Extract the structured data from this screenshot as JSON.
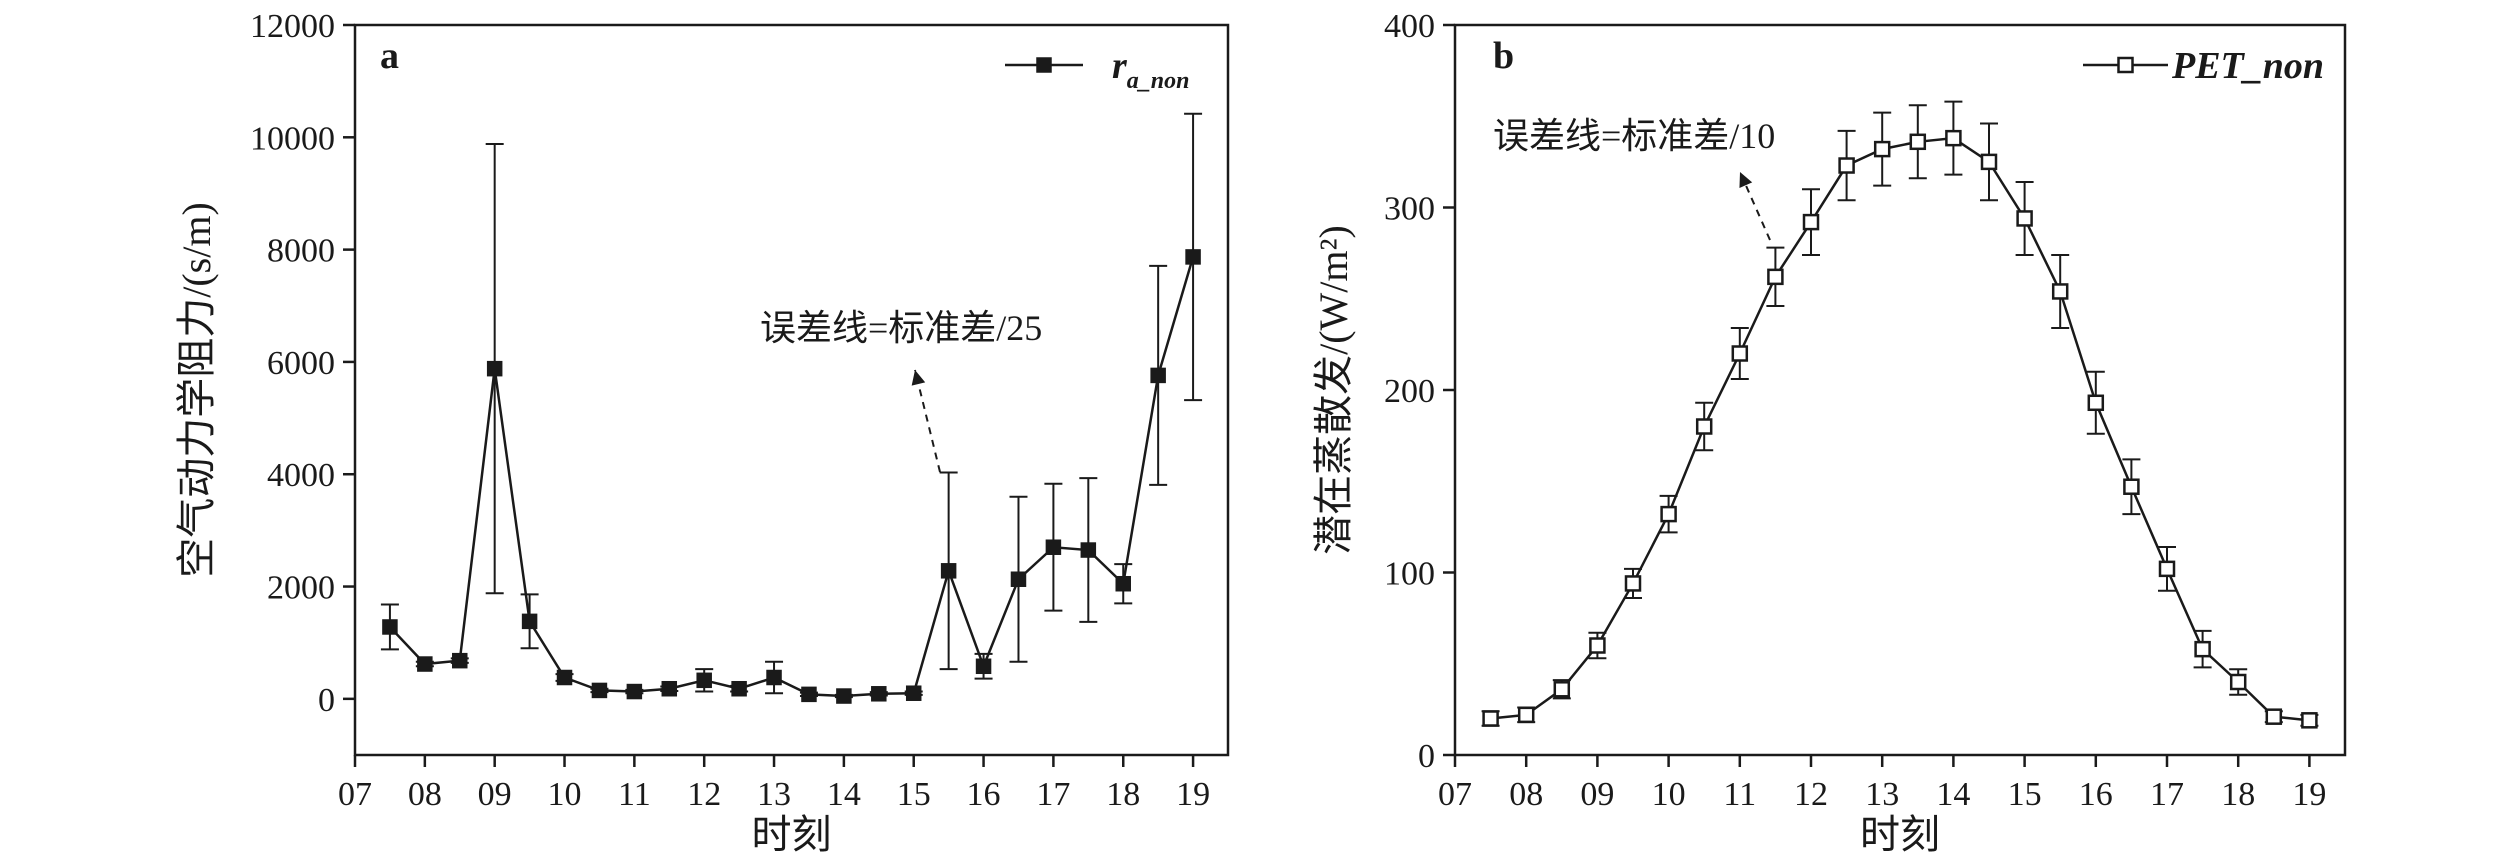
{
  "chart_data": [
    {
      "type": "line",
      "panel_label": "a",
      "xlabel": "时刻",
      "ylabel": "空气动力学阻力/(s/m)",
      "xlim": [
        7,
        19.5
      ],
      "ylim": [
        -1000,
        12000
      ],
      "xticks": [
        7,
        8,
        9,
        10,
        11,
        12,
        13,
        14,
        15,
        16,
        17,
        18,
        19
      ],
      "xtick_labels": [
        "07",
        "08",
        "09",
        "10",
        "11",
        "12",
        "13",
        "14",
        "15",
        "16",
        "17",
        "18",
        "19"
      ],
      "yticks": [
        0,
        2000,
        4000,
        6000,
        8000,
        10000,
        12000
      ],
      "ytick_labels": [
        "0",
        "2000",
        "4000",
        "6000",
        "8000",
        "10000",
        "12000"
      ],
      "legend": {
        "placement": "top-right",
        "name": "r",
        "name_sub": "a_non",
        "marker": "filled-square"
      },
      "annotation": {
        "text": "误差线=标准差/25",
        "arrow": "dashed"
      },
      "series": [
        {
          "x": [
            7.5,
            8,
            8.5,
            9,
            9.5,
            10,
            10.5,
            11,
            11.5,
            12,
            12.5,
            13,
            13.5,
            14,
            14.5,
            15,
            15.5,
            16,
            16.5,
            17,
            17.5,
            18,
            18.5,
            19
          ],
          "y": [
            1280,
            620,
            680,
            5880,
            1380,
            380,
            150,
            130,
            180,
            330,
            180,
            380,
            80,
            50,
            90,
            100,
            2280,
            580,
            2130,
            2700,
            2650,
            2050,
            5760,
            7870
          ],
          "err": [
            400,
            40,
            40,
            4000,
            480,
            60,
            30,
            30,
            40,
            200,
            50,
            280,
            30,
            20,
            30,
            30,
            1750,
            220,
            1470,
            1130,
            1280,
            350,
            1950,
            2550
          ]
        }
      ]
    },
    {
      "type": "line",
      "panel_label": "b",
      "xlabel": "时刻",
      "ylabel": "潜在蒸散发/(W/m²)",
      "xlim": [
        7,
        19.5
      ],
      "ylim": [
        0,
        400
      ],
      "xticks": [
        7,
        8,
        9,
        10,
        11,
        12,
        13,
        14,
        15,
        16,
        17,
        18,
        19
      ],
      "xtick_labels": [
        "07",
        "08",
        "09",
        "10",
        "11",
        "12",
        "13",
        "14",
        "15",
        "16",
        "17",
        "18",
        "19"
      ],
      "yticks": [
        0,
        100,
        200,
        300,
        400
      ],
      "ytick_labels": [
        "0",
        "100",
        "200",
        "300",
        "400"
      ],
      "legend": {
        "placement": "top-right",
        "name": "PET_non",
        "marker": "open-square"
      },
      "annotation": {
        "text": "误差线=标准差/10",
        "arrow": "dashed"
      },
      "series": [
        {
          "x": [
            7.5,
            8,
            8.5,
            9,
            9.5,
            10,
            10.5,
            11,
            11.5,
            12,
            12.5,
            13,
            13.5,
            14,
            14.5,
            15,
            15.5,
            16,
            16.5,
            17,
            17.5,
            18,
            18.5,
            19
          ],
          "y": [
            20,
            22,
            36,
            60,
            94,
            132,
            180,
            220,
            262,
            292,
            323,
            332,
            336,
            338,
            325,
            294,
            254,
            193,
            147,
            102,
            58,
            40,
            21,
            19
          ],
          "err": [
            4,
            4,
            5,
            7,
            8,
            10,
            13,
            14,
            16,
            18,
            19,
            20,
            20,
            20,
            21,
            20,
            20,
            17,
            15,
            12,
            10,
            7,
            3,
            3
          ]
        }
      ]
    }
  ]
}
